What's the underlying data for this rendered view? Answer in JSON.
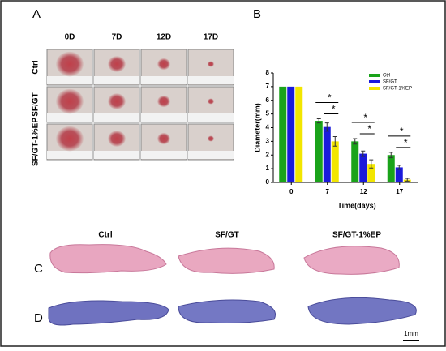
{
  "panel_labels": [
    "A",
    "B",
    "C",
    "D"
  ],
  "photos": {
    "columns": [
      "0D",
      "7D",
      "12D",
      "17D"
    ],
    "rows": [
      "Ctrl",
      "SF/GT",
      "SF/GT-1%EP"
    ]
  },
  "histology": {
    "columns": [
      "Ctrl",
      "SF/GT",
      "SF/GT-1%EP"
    ],
    "scale_bar": "1mm"
  },
  "chart_data": {
    "type": "bar",
    "x_label": "Time(days)",
    "y_label": "Diameter(mm)",
    "categories": [
      "0",
      "7",
      "12",
      "17"
    ],
    "series": [
      {
        "name": "Ctrl",
        "color": "#1aa31a",
        "values": [
          7,
          4.5,
          3.0,
          2.0
        ],
        "errors": [
          0,
          0.15,
          0.2,
          0.2
        ]
      },
      {
        "name": "SF/GT",
        "color": "#1a1adb",
        "values": [
          7,
          4.05,
          2.1,
          1.1
        ],
        "errors": [
          0,
          0.3,
          0.2,
          0.15
        ]
      },
      {
        "name": "SF/GT-1%EP",
        "color": "#f2e600",
        "values": [
          7,
          3.0,
          1.35,
          0.2
        ],
        "errors": [
          0,
          0.35,
          0.3,
          0.1
        ]
      }
    ],
    "annotations": [
      "*",
      "*",
      "*",
      "*",
      "*",
      "*"
    ],
    "ylim": [
      0,
      8
    ],
    "yticks": [
      0,
      1,
      2,
      3,
      4,
      5,
      6,
      7,
      8
    ],
    "legend": "top-right"
  }
}
